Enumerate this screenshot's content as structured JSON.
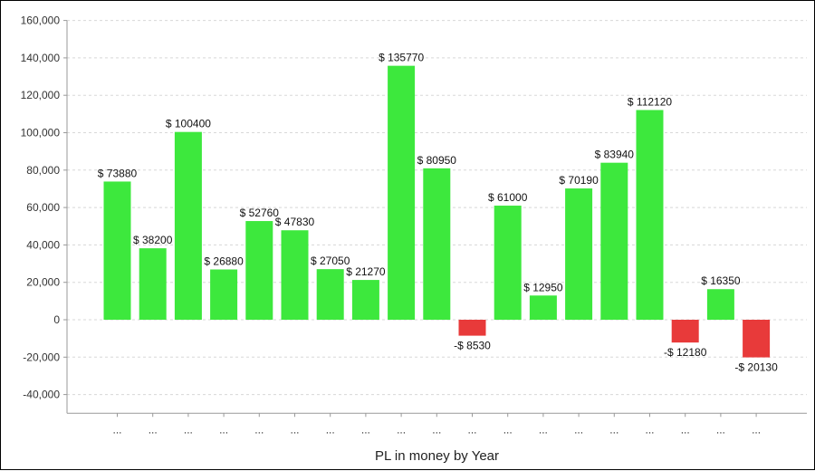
{
  "chart_data": {
    "type": "bar",
    "title": "",
    "xlabel": "PL in money by Year",
    "ylabel": "",
    "ylim": [
      -50000,
      160000
    ],
    "yticks": [
      160000,
      140000,
      120000,
      100000,
      80000,
      60000,
      40000,
      20000,
      0,
      -20000,
      -40000
    ],
    "ytick_labels": [
      "160,000",
      "140,000",
      "120,000",
      "100,000",
      "80,000",
      "60,000",
      "40,000",
      "20,000",
      "0",
      "-20,000",
      "-40,000"
    ],
    "grid": true,
    "categories": [
      "...",
      "...",
      "...",
      "...",
      "...",
      "...",
      "...",
      "...",
      "...",
      "...",
      "...",
      "...",
      "...",
      "...",
      "...",
      "...",
      "...",
      "...",
      "..."
    ],
    "values": [
      73880,
      38200,
      100400,
      26880,
      52760,
      47830,
      27050,
      21270,
      135770,
      80950,
      -8530,
      61000,
      12950,
      70190,
      83940,
      112120,
      -12180,
      16350,
      -20130
    ],
    "labels": [
      "$ 73880",
      "$ 38200",
      "$ 100400",
      "$ 26880",
      "$ 52760",
      "$ 47830",
      "$ 27050",
      "$ 21270",
      "$ 135770",
      "$ 80950",
      "-$ 8530",
      "$ 61000",
      "$ 12950",
      "$ 70190",
      "$ 83940",
      "$ 112120",
      "-$ 12180",
      "$ 16350",
      "-$ 20130"
    ],
    "colors": {
      "positive": "#3de83d",
      "negative": "#e83a3a",
      "grid": "#d8d8d8",
      "axis": "#999999"
    }
  }
}
